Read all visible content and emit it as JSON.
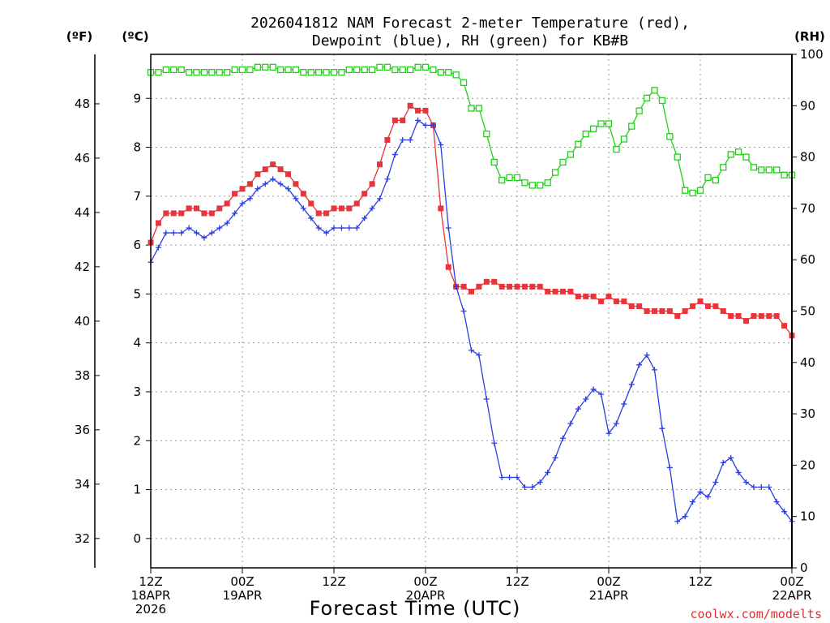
{
  "chart_data": {
    "type": "line",
    "title_line1": "2026041812 NAM Forecast 2-meter Temperature (red),",
    "title_line2": "Dewpoint (blue), RH (green) for KB#B",
    "xlabel": "Forecast Time (UTC)",
    "credit": "coolwx.com/modelts",
    "axis_labels": {
      "fahrenheit": "(ºF)",
      "celsius": "(ºC)",
      "rh": "(RH)"
    },
    "fahrenheit_ticks": [
      "32",
      "34",
      "36",
      "38",
      "40",
      "42",
      "44",
      "46",
      "48"
    ],
    "celsius_ticks": [
      "0",
      "1",
      "2",
      "3",
      "4",
      "5",
      "6",
      "7",
      "8",
      "9"
    ],
    "rh_ticks": [
      "0",
      "10",
      "20",
      "30",
      "40",
      "50",
      "60",
      "70",
      "80",
      "90",
      "100"
    ],
    "ylim_c": [
      -0.6,
      9.9
    ],
    "ylim_rh": [
      0,
      100
    ],
    "xlim_hours": [
      0,
      84
    ],
    "x_ticks": [
      {
        "hour": 0,
        "l1": "12Z",
        "l2": "18APR",
        "l3": "2026"
      },
      {
        "hour": 12,
        "l1": "00Z",
        "l2": "19APR",
        "l3": ""
      },
      {
        "hour": 24,
        "l1": "12Z",
        "l2": "",
        "l3": ""
      },
      {
        "hour": 36,
        "l1": "00Z",
        "l2": "20APR",
        "l3": ""
      },
      {
        "hour": 48,
        "l1": "12Z",
        "l2": "",
        "l3": ""
      },
      {
        "hour": 60,
        "l1": "00Z",
        "l2": "21APR",
        "l3": ""
      },
      {
        "hour": 72,
        "l1": "12Z",
        "l2": "",
        "l3": ""
      },
      {
        "hour": 84,
        "l1": "00Z",
        "l2": "22APR",
        "l3": ""
      }
    ],
    "series": [
      {
        "name": "Temperature",
        "units": "C",
        "color": "#e8343a",
        "marker": "filled-square",
        "values": [
          6.05,
          6.45,
          6.65,
          6.65,
          6.65,
          6.75,
          6.75,
          6.65,
          6.65,
          6.75,
          6.85,
          7.05,
          7.15,
          7.25,
          7.45,
          7.55,
          7.65,
          7.55,
          7.45,
          7.25,
          7.05,
          6.85,
          6.65,
          6.65,
          6.75,
          6.75,
          6.75,
          6.85,
          7.05,
          7.25,
          7.65,
          8.15,
          8.55,
          8.55,
          8.85,
          8.75,
          8.75,
          8.45,
          6.75,
          5.55,
          5.15,
          5.15,
          5.05,
          5.15,
          5.25,
          5.25,
          5.15,
          5.15,
          5.15,
          5.15,
          5.15,
          5.15,
          5.05,
          5.05,
          5.05,
          5.05,
          4.95,
          4.95,
          4.95,
          4.85,
          4.95,
          4.85,
          4.85,
          4.75,
          4.75,
          4.65,
          4.65,
          4.65,
          4.65,
          4.55,
          4.65,
          4.75,
          4.85,
          4.75,
          4.75,
          4.65,
          4.55,
          4.55,
          4.45,
          4.55,
          4.55,
          4.55,
          4.55,
          4.35,
          4.15
        ]
      },
      {
        "name": "Dewpoint",
        "units": "C",
        "color": "#2a3fe0",
        "marker": "plus",
        "values": [
          5.65,
          5.95,
          6.25,
          6.25,
          6.25,
          6.35,
          6.25,
          6.15,
          6.25,
          6.35,
          6.45,
          6.65,
          6.85,
          6.95,
          7.15,
          7.25,
          7.35,
          7.25,
          7.15,
          6.95,
          6.75,
          6.55,
          6.35,
          6.25,
          6.35,
          6.35,
          6.35,
          6.35,
          6.55,
          6.75,
          6.95,
          7.35,
          7.85,
          8.15,
          8.15,
          8.55,
          8.45,
          8.45,
          8.05,
          6.35,
          5.15,
          4.65,
          3.85,
          3.75,
          2.85,
          1.95,
          1.25,
          1.25,
          1.25,
          1.05,
          1.05,
          1.15,
          1.35,
          1.65,
          2.05,
          2.35,
          2.65,
          2.85,
          3.05,
          2.95,
          2.15,
          2.35,
          2.75,
          3.15,
          3.55,
          3.75,
          3.45,
          2.25,
          1.45,
          0.35,
          0.45,
          0.75,
          0.95,
          0.85,
          1.15,
          1.55,
          1.65,
          1.35,
          1.15,
          1.05,
          1.05,
          1.05,
          0.75,
          0.55,
          0.35
        ]
      },
      {
        "name": "RH",
        "units": "%",
        "color": "#22d018",
        "marker": "open-square",
        "values": [
          96.5,
          96.5,
          97,
          97,
          97,
          96.5,
          96.5,
          96.5,
          96.5,
          96.5,
          96.5,
          97,
          97,
          97,
          97.5,
          97.5,
          97.5,
          97,
          97,
          97,
          96.5,
          96.5,
          96.5,
          96.5,
          96.5,
          96.5,
          97,
          97,
          97,
          97,
          97.5,
          97.5,
          97,
          97,
          97,
          97.5,
          97.5,
          97,
          96.5,
          96.5,
          96,
          94.5,
          89.5,
          89.5,
          84.5,
          79,
          75.5,
          76,
          76,
          75,
          74.5,
          74.5,
          75,
          77,
          79,
          80.5,
          82.5,
          84.5,
          85.5,
          86.5,
          86.5,
          81.5,
          83.5,
          86,
          89,
          91.5,
          93,
          91,
          84,
          80,
          73.5,
          73,
          73.5,
          76,
          75.5,
          78,
          80.5,
          81,
          80,
          78,
          77.5,
          77.5,
          77.5,
          76.5,
          76.5
        ]
      }
    ]
  }
}
